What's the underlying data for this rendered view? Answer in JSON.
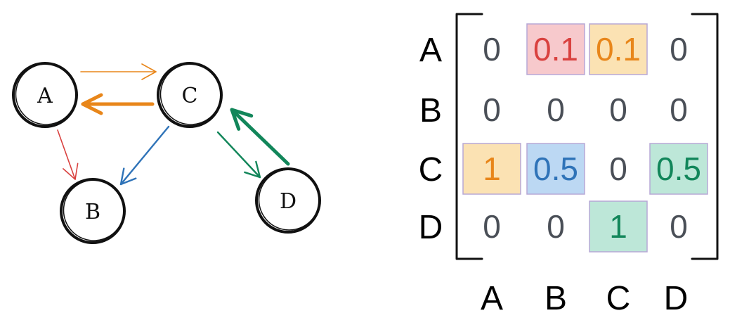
{
  "graph": {
    "nodes": [
      {
        "id": "A",
        "label": "A"
      },
      {
        "id": "B",
        "label": "B"
      },
      {
        "id": "C",
        "label": "C"
      },
      {
        "id": "D",
        "label": "D"
      }
    ],
    "edges": [
      {
        "from": "A",
        "to": "C",
        "color": "#e8861a",
        "weight": "thin"
      },
      {
        "from": "C",
        "to": "A",
        "color": "#e8861a",
        "weight": "thick"
      },
      {
        "from": "A",
        "to": "B",
        "color": "#d9413f",
        "weight": "thin"
      },
      {
        "from": "C",
        "to": "B",
        "color": "#2f73b8",
        "weight": "medium"
      },
      {
        "from": "C",
        "to": "D",
        "color": "#12865a",
        "weight": "medium"
      },
      {
        "from": "D",
        "to": "C",
        "color": "#12865a",
        "weight": "thick"
      }
    ]
  },
  "matrix": {
    "row_labels": [
      "A",
      "B",
      "C",
      "D"
    ],
    "col_labels": [
      "A",
      "B",
      "C",
      "D"
    ],
    "cells": [
      [
        "0",
        "0.1",
        "0.1",
        "0"
      ],
      [
        "0",
        "0",
        "0",
        "0"
      ],
      [
        "1",
        "0.5",
        "0",
        "0.5"
      ],
      [
        "0",
        "0",
        "1",
        "0"
      ]
    ],
    "highlights": [
      {
        "row": 0,
        "col": 1,
        "fill": "#f7c9cc",
        "text": "#d9413f"
      },
      {
        "row": 0,
        "col": 2,
        "fill": "#fbe2b3",
        "text": "#e8861a"
      },
      {
        "row": 2,
        "col": 0,
        "fill": "#fbe2b3",
        "text": "#e8861a"
      },
      {
        "row": 2,
        "col": 1,
        "fill": "#bcd8f3",
        "text": "#2f73b8"
      },
      {
        "row": 2,
        "col": 3,
        "fill": "#bde7d8",
        "text": "#12865a"
      },
      {
        "row": 3,
        "col": 2,
        "fill": "#bde7d8",
        "text": "#12865a"
      }
    ],
    "default_text_color": "#4a4f57"
  }
}
